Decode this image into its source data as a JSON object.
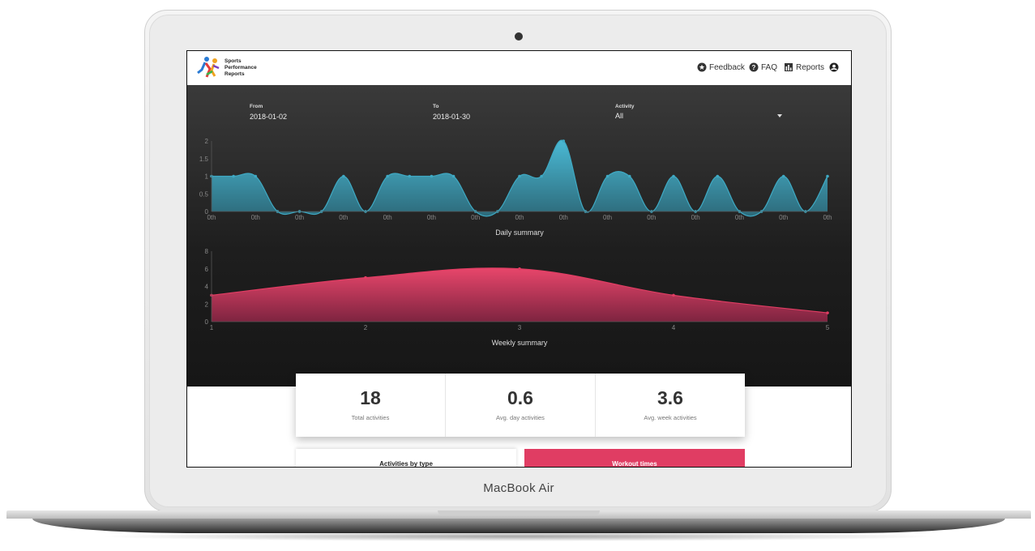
{
  "device": {
    "brand_label": "MacBook Air"
  },
  "header": {
    "logo_text": [
      "Sports",
      "Performance",
      "Reports"
    ],
    "nav": [
      {
        "label": "Feedback",
        "icon": "star-circle-icon"
      },
      {
        "label": "FAQ",
        "icon": "help-circle-icon"
      },
      {
        "label": "Reports",
        "icon": "bar-chart-icon"
      }
    ],
    "account_icon": "account-circle-icon"
  },
  "filters": {
    "from": {
      "label": "From",
      "value": "2018-01-02"
    },
    "to": {
      "label": "To",
      "value": "2018-01-30"
    },
    "activity": {
      "label": "Activity",
      "value": "All"
    }
  },
  "stats": [
    {
      "value": "18",
      "label": "Total activities"
    },
    {
      "value": "0.6",
      "label": "Avg. day activities"
    },
    {
      "value": "3.6",
      "label": "Avg. week activities"
    }
  ],
  "panels": {
    "activities_by_type": "Activities by type",
    "workout_times": "Workout times"
  },
  "colors": {
    "daily": "#3fa9c3",
    "weekly": "#e03d63",
    "accent_pink": "#e03d63"
  },
  "chart_data": [
    {
      "type": "area",
      "title": "Daily summary",
      "y_ticks": [
        "0",
        "0.5",
        "1",
        "1.5",
        "2"
      ],
      "ylim": [
        0,
        2
      ],
      "x_tick_label": "0th",
      "values": [
        1,
        1,
        1,
        0,
        0,
        0,
        1,
        0,
        1,
        1,
        1,
        1,
        0,
        0,
        1,
        1,
        2,
        0,
        1,
        1,
        0,
        1,
        0,
        1,
        0,
        0,
        1,
        0,
        1
      ],
      "grid": false
    },
    {
      "type": "area",
      "title": "Weekly summary",
      "x": [
        1,
        2,
        3,
        4,
        5
      ],
      "x_ticks": [
        "1",
        "2",
        "3",
        "4",
        "5"
      ],
      "values": [
        3,
        5,
        6,
        3,
        1
      ],
      "y_ticks": [
        "0",
        "2",
        "4",
        "6",
        "8"
      ],
      "ylim": [
        0,
        8
      ],
      "grid": false
    }
  ]
}
